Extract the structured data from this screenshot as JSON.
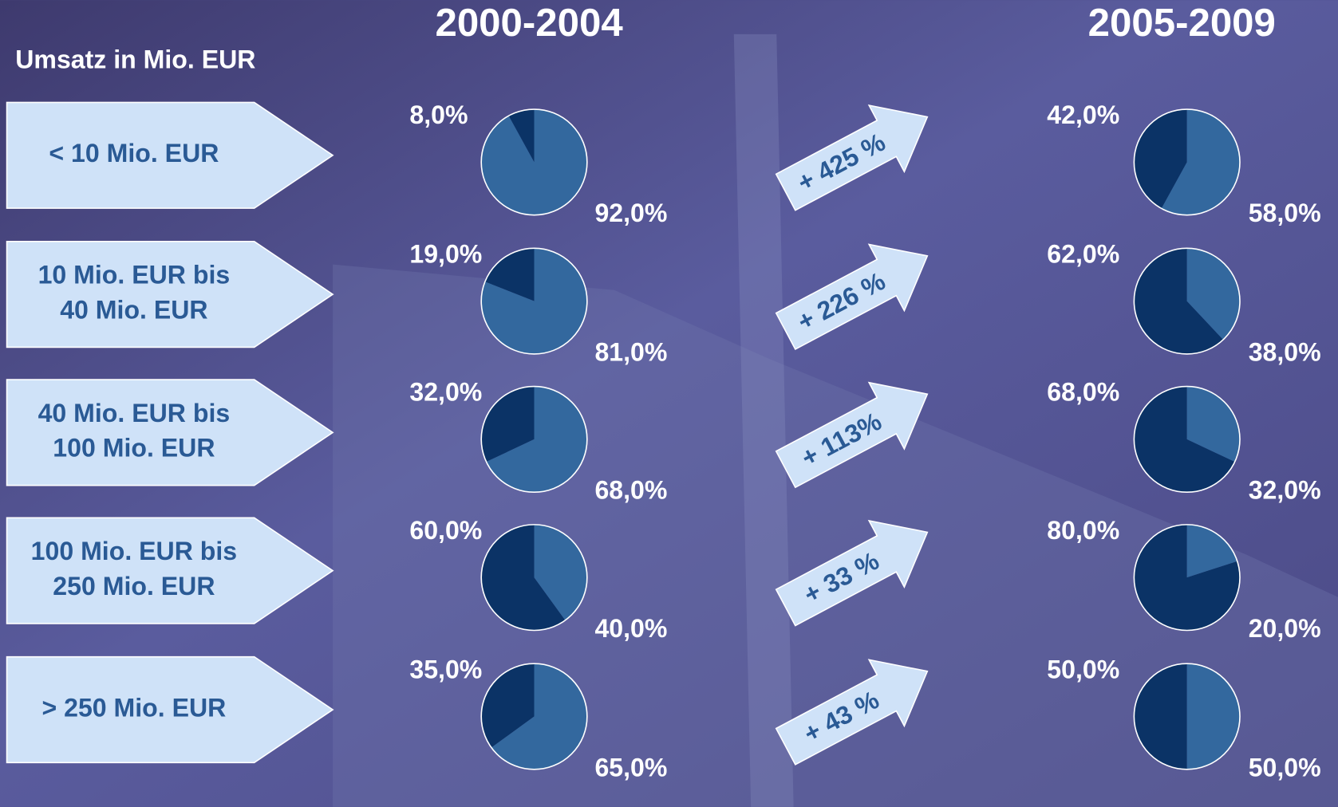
{
  "title": "Umsatz in Mio. EUR",
  "periods": [
    "2000-2004",
    "2005-2009"
  ],
  "rows": [
    {
      "label": [
        "< 10 Mio. EUR"
      ],
      "growth": "+ 425 %"
    },
    {
      "label": [
        "10 Mio. EUR bis",
        "40 Mio. EUR"
      ],
      "growth": "+ 226 %"
    },
    {
      "label": [
        "40 Mio. EUR bis",
        "100 Mio. EUR"
      ],
      "growth": "+ 113%"
    },
    {
      "label": [
        "100 Mio. EUR bis",
        "250 Mio. EUR"
      ],
      "growth": "+ 33 %"
    },
    {
      "label": [
        "> 250 Mio. EUR"
      ],
      "growth": "+ 43 %"
    }
  ],
  "chart_data": [
    {
      "type": "pie",
      "values": [
        8,
        92
      ],
      "value_labels": [
        "8,0%",
        "92,0%"
      ],
      "colors": [
        "#0b3366",
        "#33689e"
      ]
    },
    {
      "type": "pie",
      "values": [
        42,
        58
      ],
      "value_labels": [
        "42,0%",
        "58,0%"
      ],
      "colors": [
        "#0b3366",
        "#33689e"
      ]
    },
    {
      "type": "pie",
      "values": [
        19,
        81
      ],
      "value_labels": [
        "19,0%",
        "81,0%"
      ],
      "colors": [
        "#0b3366",
        "#33689e"
      ]
    },
    {
      "type": "pie",
      "values": [
        62,
        38
      ],
      "value_labels": [
        "62,0%",
        "38,0%"
      ],
      "colors": [
        "#0b3366",
        "#33689e"
      ]
    },
    {
      "type": "pie",
      "values": [
        32,
        68
      ],
      "value_labels": [
        "32,0%",
        "68,0%"
      ],
      "colors": [
        "#0b3366",
        "#33689e"
      ]
    },
    {
      "type": "pie",
      "values": [
        68,
        32
      ],
      "value_labels": [
        "68,0%",
        "32,0%"
      ],
      "colors": [
        "#0b3366",
        "#33689e"
      ]
    },
    {
      "type": "pie",
      "values": [
        60,
        40
      ],
      "value_labels": [
        "60,0%",
        "40,0%"
      ],
      "colors": [
        "#0b3366",
        "#33689e"
      ]
    },
    {
      "type": "pie",
      "values": [
        80,
        20
      ],
      "value_labels": [
        "80,0%",
        "20,0%"
      ],
      "colors": [
        "#0b3366",
        "#33689e"
      ]
    },
    {
      "type": "pie",
      "values": [
        35,
        65
      ],
      "value_labels": [
        "35,0%",
        "65,0%"
      ],
      "colors": [
        "#0b3366",
        "#33689e"
      ]
    },
    {
      "type": "pie",
      "values": [
        50,
        50
      ],
      "value_labels": [
        "50,0%",
        "50,0%"
      ],
      "colors": [
        "#0b3366",
        "#33689e"
      ]
    }
  ]
}
